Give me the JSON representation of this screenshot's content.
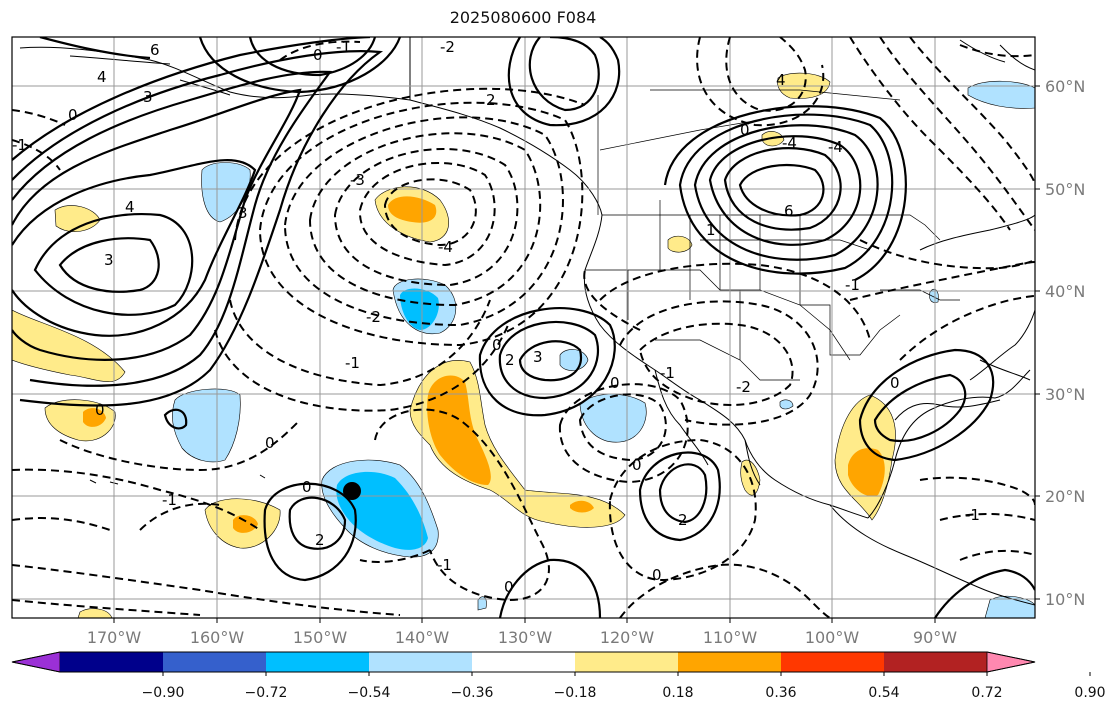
{
  "title": "2025080600 F084",
  "lat_labels": [
    "60°N",
    "50°N",
    "40°N",
    "30°N",
    "20°N",
    "10°N"
  ],
  "lon_labels": [
    "170°W",
    "160°W",
    "150°W",
    "140°W",
    "130°W",
    "120°W",
    "110°W",
    "100°W",
    "90°W"
  ],
  "colorbar": {
    "ticks": [
      "−0.90",
      "−0.72",
      "−0.54",
      "−0.36",
      "−0.18",
      "0.18",
      "0.36",
      "0.54",
      "0.72",
      "0.90"
    ],
    "colors": [
      "#9b30d6",
      "#00008b",
      "#3560cc",
      "#00bfff",
      "#b0e2ff",
      "#ffffff",
      "#ffeb8a",
      "#ffa500",
      "#ff3800",
      "#b22222",
      "#ff88b0"
    ]
  },
  "contour_labels": [
    "0",
    "-1",
    "6",
    "4",
    "3",
    "0",
    "-1",
    "-2",
    "2",
    "3",
    "4",
    "-3",
    "-4",
    "-2",
    "-1",
    "0",
    "0",
    "2",
    "3",
    "0",
    "-1",
    "6",
    "4",
    "-4",
    "-4",
    "1",
    "-2",
    "0",
    "-1",
    "2",
    "0",
    "0",
    "-1",
    "-1",
    "0",
    "3",
    "0",
    "2",
    "-1",
    "0",
    "0"
  ],
  "marker": "black-dot"
}
